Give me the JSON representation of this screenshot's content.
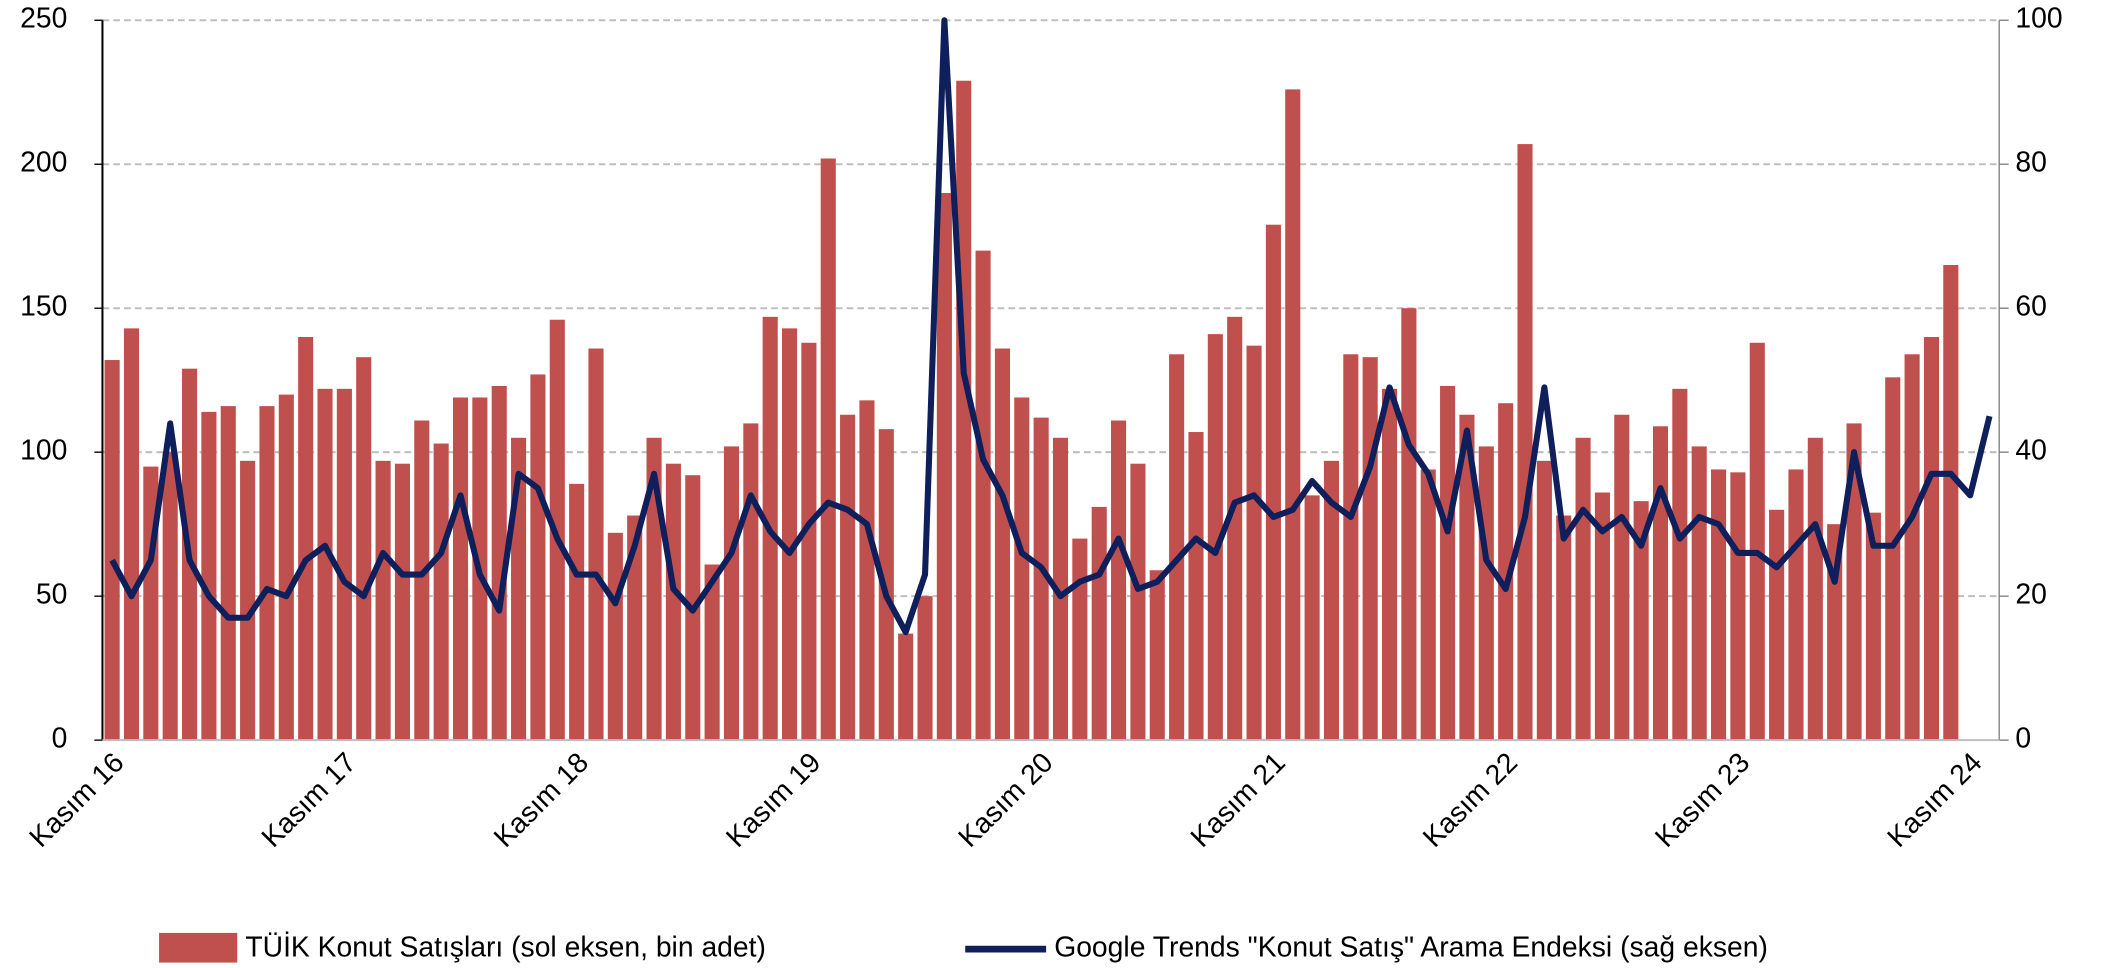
{
  "chart_data": {
    "type": "bar",
    "categories": [
      "Kasım 16",
      null,
      null,
      null,
      null,
      null,
      null,
      null,
      null,
      null,
      null,
      null,
      "Kasım 17",
      null,
      null,
      null,
      null,
      null,
      null,
      null,
      null,
      null,
      null,
      null,
      "Kasım 18",
      null,
      null,
      null,
      null,
      null,
      null,
      null,
      null,
      null,
      null,
      null,
      "Kasım 19",
      null,
      null,
      null,
      null,
      null,
      null,
      null,
      null,
      null,
      null,
      null,
      "Kasım 20",
      null,
      null,
      null,
      null,
      null,
      null,
      null,
      null,
      null,
      null,
      null,
      "Kasım 21",
      null,
      null,
      null,
      null,
      null,
      null,
      null,
      null,
      null,
      null,
      null,
      "Kasım 22",
      null,
      null,
      null,
      null,
      null,
      null,
      null,
      null,
      null,
      null,
      null,
      "Kasım 23",
      null,
      null,
      null,
      null,
      null,
      null,
      null,
      null,
      null,
      null,
      null,
      "Kasım 24",
      null
    ],
    "series": [
      {
        "name": "TÜİK Konut Satışları (sol eksen, bin adet)",
        "color": "#c0504d",
        "type": "bar",
        "values": [
          132,
          143,
          95,
          100,
          129,
          114,
          116,
          97,
          116,
          120,
          140,
          122,
          122,
          133,
          97,
          96,
          111,
          103,
          119,
          119,
          123,
          105,
          127,
          146,
          89,
          136,
          72,
          78,
          105,
          96,
          92,
          61,
          102,
          110,
          147,
          143,
          138,
          202,
          113,
          118,
          108,
          37,
          50,
          190,
          229,
          170,
          136,
          119,
          112,
          105,
          70,
          81,
          111,
          96,
          59,
          134,
          107,
          141,
          147,
          137,
          179,
          226,
          85,
          97,
          134,
          133,
          122,
          150,
          94,
          123,
          113,
          102,
          117,
          207,
          97,
          78,
          105,
          86,
          113,
          83,
          109,
          122,
          102,
          94,
          93,
          138,
          80,
          94,
          105,
          75,
          110,
          79,
          126,
          134,
          140,
          165,
          null,
          null
        ]
      },
      {
        "name": "Google Trends \"Konut Satış\" Arama Endeksi (sağ eksen)",
        "color": "#0f1f5c",
        "type": "line",
        "axis": "y2",
        "values": [
          25,
          20,
          25,
          44,
          25,
          20,
          17,
          17,
          21,
          20,
          25,
          27,
          22,
          20,
          26,
          23,
          23,
          26,
          34,
          23,
          18,
          37,
          35,
          28,
          23,
          23,
          19,
          27,
          37,
          21,
          18,
          22,
          26,
          34,
          29,
          26,
          30,
          33,
          32,
          30,
          20,
          15,
          23,
          100,
          51,
          39,
          34,
          26,
          24,
          20,
          22,
          23,
          28,
          21,
          22,
          25,
          28,
          26,
          33,
          34,
          31,
          32,
          36,
          33,
          31,
          38,
          49,
          41,
          37,
          29,
          43,
          25,
          21,
          31,
          49,
          28,
          32,
          29,
          31,
          27,
          35,
          28,
          31,
          30,
          26,
          26,
          24,
          27,
          30,
          22,
          40,
          27,
          27,
          31,
          37,
          37,
          34,
          45
        ]
      }
    ],
    "ylim": [
      0,
      250
    ],
    "yticks": [
      0,
      50,
      100,
      150,
      200,
      250
    ],
    "y2lim": [
      0,
      100
    ],
    "y2ticks": [
      0,
      20,
      40,
      60,
      80,
      100
    ],
    "grid": true,
    "legend": "bottom"
  }
}
